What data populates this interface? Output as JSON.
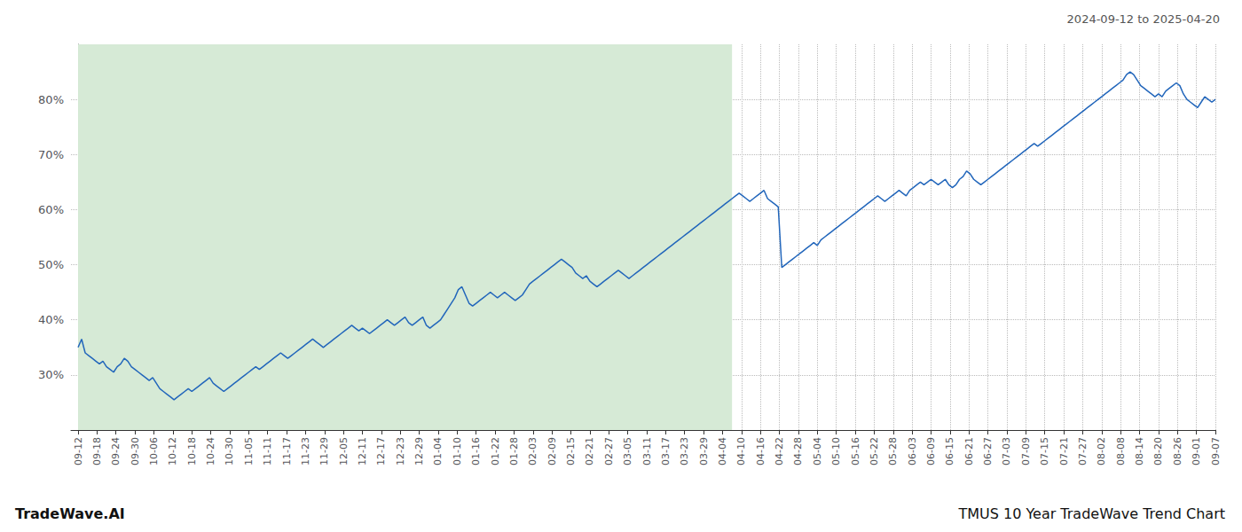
{
  "chart_data": {
    "type": "line",
    "title": "TMUS 10 Year TradeWave Trend Chart",
    "subtitle": "2024-09-12 to 2025-04-20",
    "annotations": [
      "TradeWave.AI"
    ],
    "color": "#2266bb",
    "grid": true,
    "shaded_x": [
      0,
      184
    ],
    "shaded_color": "#d6ead6",
    "xlim": [
      -2,
      320
    ],
    "ylim": [
      20,
      90
    ],
    "yticks": [
      {
        "value": 30,
        "label": "30%"
      },
      {
        "value": 40,
        "label": "40%"
      },
      {
        "value": 50,
        "label": "50%"
      },
      {
        "value": 60,
        "label": "60%"
      },
      {
        "value": 70,
        "label": "70%"
      },
      {
        "value": 80,
        "label": "80%"
      }
    ],
    "xticks": [
      {
        "value": 0,
        "label": "09-12"
      },
      {
        "value": 5.333333333333333,
        "label": "09-18"
      },
      {
        "value": 10.666666666666666,
        "label": "09-24"
      },
      {
        "value": 16,
        "label": "09-30"
      },
      {
        "value": 21.333333333333332,
        "label": "10-06"
      },
      {
        "value": 26.666666666666668,
        "label": "10-12"
      },
      {
        "value": 32,
        "label": "10-18"
      },
      {
        "value": 37.333333333333336,
        "label": "10-24"
      },
      {
        "value": 42.666666666666664,
        "label": "10-30"
      },
      {
        "value": 48,
        "label": "11-05"
      },
      {
        "value": 53.333333333333336,
        "label": "11-11"
      },
      {
        "value": 58.666666666666664,
        "label": "11-17"
      },
      {
        "value": 64,
        "label": "11-23"
      },
      {
        "value": 69.33333333333333,
        "label": "11-29"
      },
      {
        "value": 74.66666666666667,
        "label": "12-05"
      },
      {
        "value": 80,
        "label": "12-11"
      },
      {
        "value": 85.33333333333333,
        "label": "12-17"
      },
      {
        "value": 90.66666666666667,
        "label": "12-23"
      },
      {
        "value": 96,
        "label": "12-29"
      },
      {
        "value": 101.33333333333333,
        "label": "01-04"
      },
      {
        "value": 106.66666666666667,
        "label": "01-10"
      },
      {
        "value": 112,
        "label": "01-16"
      },
      {
        "value": 117.33333333333333,
        "label": "01-22"
      },
      {
        "value": 122.66666666666667,
        "label": "01-28"
      },
      {
        "value": 128,
        "label": "02-03"
      },
      {
        "value": 133.33333333333334,
        "label": "02-09"
      },
      {
        "value": 138.66666666666666,
        "label": "02-15"
      },
      {
        "value": 144,
        "label": "02-21"
      },
      {
        "value": 149.33333333333334,
        "label": "02-27"
      },
      {
        "value": 154.66666666666666,
        "label": "03-05"
      },
      {
        "value": 160,
        "label": "03-11"
      },
      {
        "value": 165.33333333333334,
        "label": "03-17"
      },
      {
        "value": 170.66666666666666,
        "label": "03-23"
      },
      {
        "value": 176,
        "label": "03-29"
      },
      {
        "value": 181.33333333333334,
        "label": "04-04"
      },
      {
        "value": 186.66666666666666,
        "label": "04-10"
      },
      {
        "value": 192,
        "label": "04-16"
      },
      {
        "value": 197.33333333333334,
        "label": "04-22"
      },
      {
        "value": 202.66666666666666,
        "label": "04-28"
      },
      {
        "value": 208,
        "label": "05-04"
      },
      {
        "value": 213.33333333333334,
        "label": "05-10"
      },
      {
        "value": 218.66666666666666,
        "label": "05-16"
      },
      {
        "value": 224,
        "label": "05-22"
      },
      {
        "value": 229.33333333333334,
        "label": "05-28"
      },
      {
        "value": 234.66666666666666,
        "label": "06-03"
      },
      {
        "value": 240,
        "label": "06-09"
      },
      {
        "value": 245.33333333333334,
        "label": "06-15"
      },
      {
        "value": 250.66666666666666,
        "label": "06-21"
      },
      {
        "value": 256,
        "label": "06-27"
      },
      {
        "value": 261.3333333333333,
        "label": "07-03"
      },
      {
        "value": 266.6666666666667,
        "label": "07-09"
      },
      {
        "value": 272,
        "label": "07-15"
      },
      {
        "value": 277.3333333333333,
        "label": "07-21"
      },
      {
        "value": 282.6666666666667,
        "label": "07-27"
      },
      {
        "value": 288,
        "label": "08-02"
      },
      {
        "value": 293.3333333333333,
        "label": "08-08"
      },
      {
        "value": 298.6666666666667,
        "label": "08-14"
      },
      {
        "value": 304,
        "label": "08-20"
      },
      {
        "value": 309.3333333333333,
        "label": "08-26"
      },
      {
        "value": 314.6666666666667,
        "label": "09-01"
      },
      {
        "value": 320,
        "label": "09-07"
      }
    ],
    "x": [
      0,
      1,
      2,
      3,
      4,
      5,
      6,
      7,
      8,
      9,
      10,
      11,
      12,
      13,
      14,
      15,
      16,
      17,
      18,
      19,
      20,
      21,
      22,
      23,
      24,
      25,
      26,
      27,
      28,
      29,
      30,
      31,
      32,
      33,
      34,
      35,
      36,
      37,
      38,
      39,
      40,
      41,
      42,
      43,
      44,
      45,
      46,
      47,
      48,
      49,
      50,
      51,
      52,
      53,
      54,
      55,
      56,
      57,
      58,
      59,
      60,
      61,
      62,
      63,
      64,
      65,
      66,
      67,
      68,
      69,
      70,
      71,
      72,
      73,
      74,
      75,
      76,
      77,
      78,
      79,
      80,
      81,
      82,
      83,
      84,
      85,
      86,
      87,
      88,
      89,
      90,
      91,
      92,
      93,
      94,
      95,
      96,
      97,
      98,
      99,
      100,
      101,
      102,
      103,
      104,
      105,
      106,
      107,
      108,
      109,
      110,
      111,
      112,
      113,
      114,
      115,
      116,
      117,
      118,
      119,
      120,
      121,
      122,
      123,
      124,
      125,
      126,
      127,
      128,
      129,
      130,
      131,
      132,
      133,
      134,
      135,
      136,
      137,
      138,
      139,
      140,
      141,
      142,
      143,
      144,
      145,
      146,
      147,
      148,
      149,
      150,
      151,
      152,
      153,
      154,
      155,
      156,
      157,
      158,
      159,
      160,
      161,
      162,
      163,
      164,
      165,
      166,
      167,
      168,
      169,
      170,
      171,
      172,
      173,
      174,
      175,
      176,
      177,
      178,
      179,
      180,
      181,
      182,
      183,
      184,
      185,
      186,
      187,
      188,
      189,
      190,
      191,
      192,
      193,
      194,
      195,
      196,
      197,
      198,
      199,
      200,
      201,
      202,
      203,
      204,
      205,
      206,
      207,
      208,
      209,
      210,
      211,
      212,
      213,
      214,
      215,
      216,
      217,
      218,
      219,
      220,
      221,
      222,
      223,
      224,
      225,
      226,
      227,
      228,
      229,
      230,
      231,
      232,
      233,
      234,
      235,
      236,
      237,
      238,
      239,
      240,
      241,
      242,
      243,
      244,
      245,
      246,
      247,
      248,
      249,
      250,
      251,
      252,
      253,
      254,
      255,
      256,
      257,
      258,
      259,
      260,
      261,
      262,
      263,
      264,
      265,
      266,
      267,
      268,
      269,
      270,
      271,
      272,
      273,
      274,
      275,
      276,
      277,
      278,
      279,
      280,
      281,
      282,
      283,
      284,
      285,
      286,
      287,
      288,
      289,
      290,
      291,
      292,
      293,
      294,
      295,
      296,
      297,
      298,
      299,
      300,
      301,
      302,
      303,
      304,
      305,
      306,
      307,
      308,
      309,
      310,
      311,
      312,
      313,
      314,
      315,
      316,
      317,
      318,
      319,
      320
    ],
    "values": [
      35.0,
      36.5,
      34.0,
      33.5,
      33.0,
      32.5,
      32.0,
      32.5,
      31.5,
      31.0,
      30.5,
      31.5,
      32.0,
      33.0,
      32.5,
      31.5,
      31.0,
      30.5,
      30.0,
      29.5,
      29.0,
      29.5,
      28.5,
      27.5,
      27.0,
      26.5,
      26.0,
      25.5,
      26.0,
      26.5,
      27.0,
      27.5,
      27.0,
      27.5,
      28.0,
      28.5,
      29.0,
      29.5,
      28.5,
      28.0,
      27.5,
      27.0,
      27.5,
      28.0,
      28.5,
      29.0,
      29.5,
      30.0,
      30.5,
      31.0,
      31.5,
      31.0,
      31.5,
      32.0,
      32.5,
      33.0,
      33.5,
      34.0,
      33.5,
      33.0,
      33.5,
      34.0,
      34.5,
      35.0,
      35.5,
      36.0,
      36.5,
      36.0,
      35.5,
      35.0,
      35.5,
      36.0,
      36.5,
      37.0,
      37.5,
      38.0,
      38.5,
      39.0,
      38.5,
      38.0,
      38.5,
      38.0,
      37.5,
      38.0,
      38.5,
      39.0,
      39.5,
      40.0,
      39.5,
      39.0,
      39.5,
      40.0,
      40.5,
      39.5,
      39.0,
      39.5,
      40.0,
      40.5,
      39.0,
      38.5,
      39.0,
      39.5,
      40.0,
      41.0,
      42.0,
      43.0,
      44.0,
      45.5,
      46.0,
      44.5,
      43.0,
      42.5,
      43.0,
      43.5,
      44.0,
      44.5,
      45.0,
      44.5,
      44.0,
      44.5,
      45.0,
      44.5,
      44.0,
      43.5,
      44.0,
      44.5,
      45.5,
      46.5,
      47.0,
      47.5,
      48.0,
      48.5,
      49.0,
      49.5,
      50.0,
      50.5,
      51.0,
      50.5,
      50.0,
      49.5,
      48.5,
      48.0,
      47.5,
      48.0,
      47.0,
      46.5,
      46.0,
      46.5,
      47.0,
      47.5,
      48.0,
      48.5,
      49.0,
      48.5,
      48.0,
      47.5,
      48.0,
      48.5,
      49.0,
      49.5,
      50.0,
      50.5,
      51.0,
      51.5,
      52.0,
      52.5,
      53.0,
      53.5,
      54.0,
      54.5,
      55.0,
      55.5,
      56.0,
      56.5,
      57.0,
      57.5,
      58.0,
      58.5,
      59.0,
      59.5,
      60.0,
      60.5,
      61.0,
      61.5,
      62.0,
      62.5,
      63.0,
      62.5,
      62.0,
      61.5,
      62.0,
      62.5,
      63.0,
      63.5,
      62.0,
      61.5,
      61.0,
      60.5,
      49.5,
      50.0,
      50.5,
      51.0,
      51.5,
      52.0,
      52.5,
      53.0,
      53.5,
      54.0,
      53.5,
      54.5,
      55.0,
      55.5,
      56.0,
      56.5,
      57.0,
      57.5,
      58.0,
      58.5,
      59.0,
      59.5,
      60.0,
      60.5,
      61.0,
      61.5,
      62.0,
      62.5,
      62.0,
      61.5,
      62.0,
      62.5,
      63.0,
      63.5,
      63.0,
      62.5,
      63.5,
      64.0,
      64.5,
      65.0,
      64.5,
      65.0,
      65.5,
      65.0,
      64.5,
      65.0,
      65.5,
      64.5,
      64.0,
      64.5,
      65.5,
      66.0,
      67.0,
      66.5,
      65.5,
      65.0,
      64.5,
      65.0,
      65.5,
      66.0,
      66.5,
      67.0,
      67.5,
      68.0,
      68.5,
      69.0,
      69.5,
      70.0,
      70.5,
      71.0,
      71.5,
      72.0,
      71.5,
      72.0,
      72.5,
      73.0,
      73.5,
      74.0,
      74.5,
      75.0,
      75.5,
      76.0,
      76.5,
      77.0,
      77.5,
      78.0,
      78.5,
      79.0,
      79.5,
      80.0,
      80.5,
      81.0,
      81.5,
      82.0,
      82.5,
      83.0,
      83.5,
      84.5,
      85.0,
      84.5,
      83.5,
      82.5,
      82.0,
      81.5,
      81.0,
      80.5,
      81.0,
      80.5,
      81.5,
      82.0,
      82.5,
      83.0,
      82.5,
      81.0,
      80.0,
      79.5,
      79.0,
      78.5,
      79.5,
      80.5,
      80.0,
      79.5,
      80.0
    ]
  }
}
